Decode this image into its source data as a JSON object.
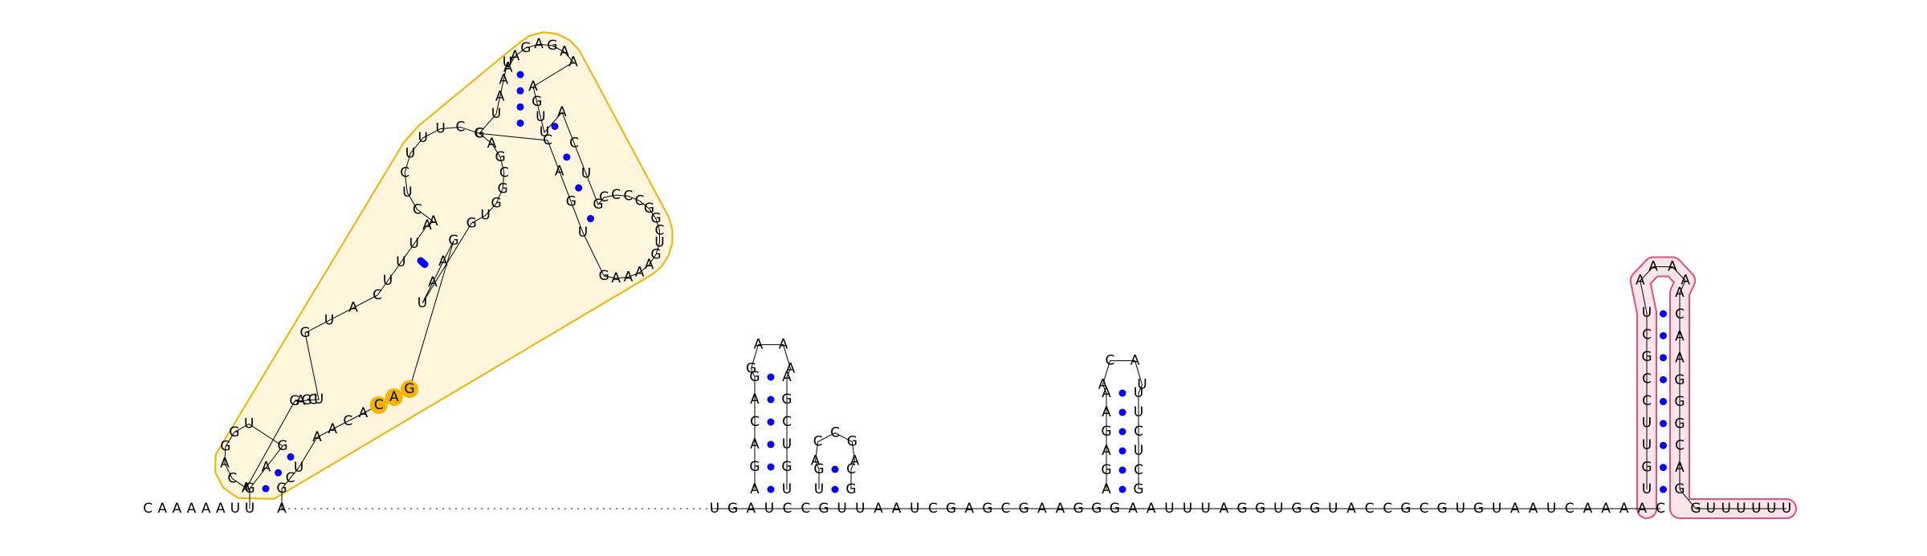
{
  "colors": {
    "base_text": "#000000",
    "pair_dot": "#0000ff",
    "backbone": "#000000",
    "domain1_outline": "#f0b400",
    "domain1_fill": "#fff6dd",
    "domain1_highlight": "#f5b400",
    "domain2_outline": "#e0507a",
    "domain2_fill": "#fde3ea"
  },
  "strands": {
    "prefix": "CAAAAAUU",
    "suffix": "A",
    "linker": "UGAUCCGUUAAUCGAGCGAAGGGAAUUUAGGUGGUACCGCGUGUAAUCAAAAC",
    "tail": "GUUUUUU"
  },
  "domain1": {
    "stem1_left": "GAG",
    "stem1_right": "UCG",
    "hairpin1_loop": "ACAGGU",
    "bulge_left": "GAGCU",
    "interior_loop_left": "GUAC",
    "interior_loop_right": "AACACAG",
    "highlighted_bases": "CAG",
    "helix2_left": "UUUA",
    "helix2_right": "UAAG",
    "big_loop_left": "ACUCUUUCC",
    "big_loop_right": "GAGCGGUG",
    "upper_stem_left": "UAAU",
    "upper_stem_right": "AGUU",
    "apical_loop": "AAGAGAA",
    "branch_stem_left": "ACUG",
    "branch_stem_right": "UGAC",
    "branch_loop": "CCCCGGCUGAAAAG"
  },
  "hairpin_a": {
    "stem_5p": "AGACAG",
    "loop": "GAAA",
    "stem_3p": "AGCUGU"
  },
  "hairpin_b": {
    "stem_5p": "UG",
    "loop": "ACCGA",
    "stem_3p": "CG"
  },
  "hairpin_c": {
    "stem_5p": "AGAGAA",
    "loop": "ACAU",
    "stem_3p": "UUCUCG"
  },
  "domain2": {
    "stem_5p": "UGUUCCGCU",
    "loop": "AAAA",
    "stem_3p": "ACAAGGGCAG"
  }
}
